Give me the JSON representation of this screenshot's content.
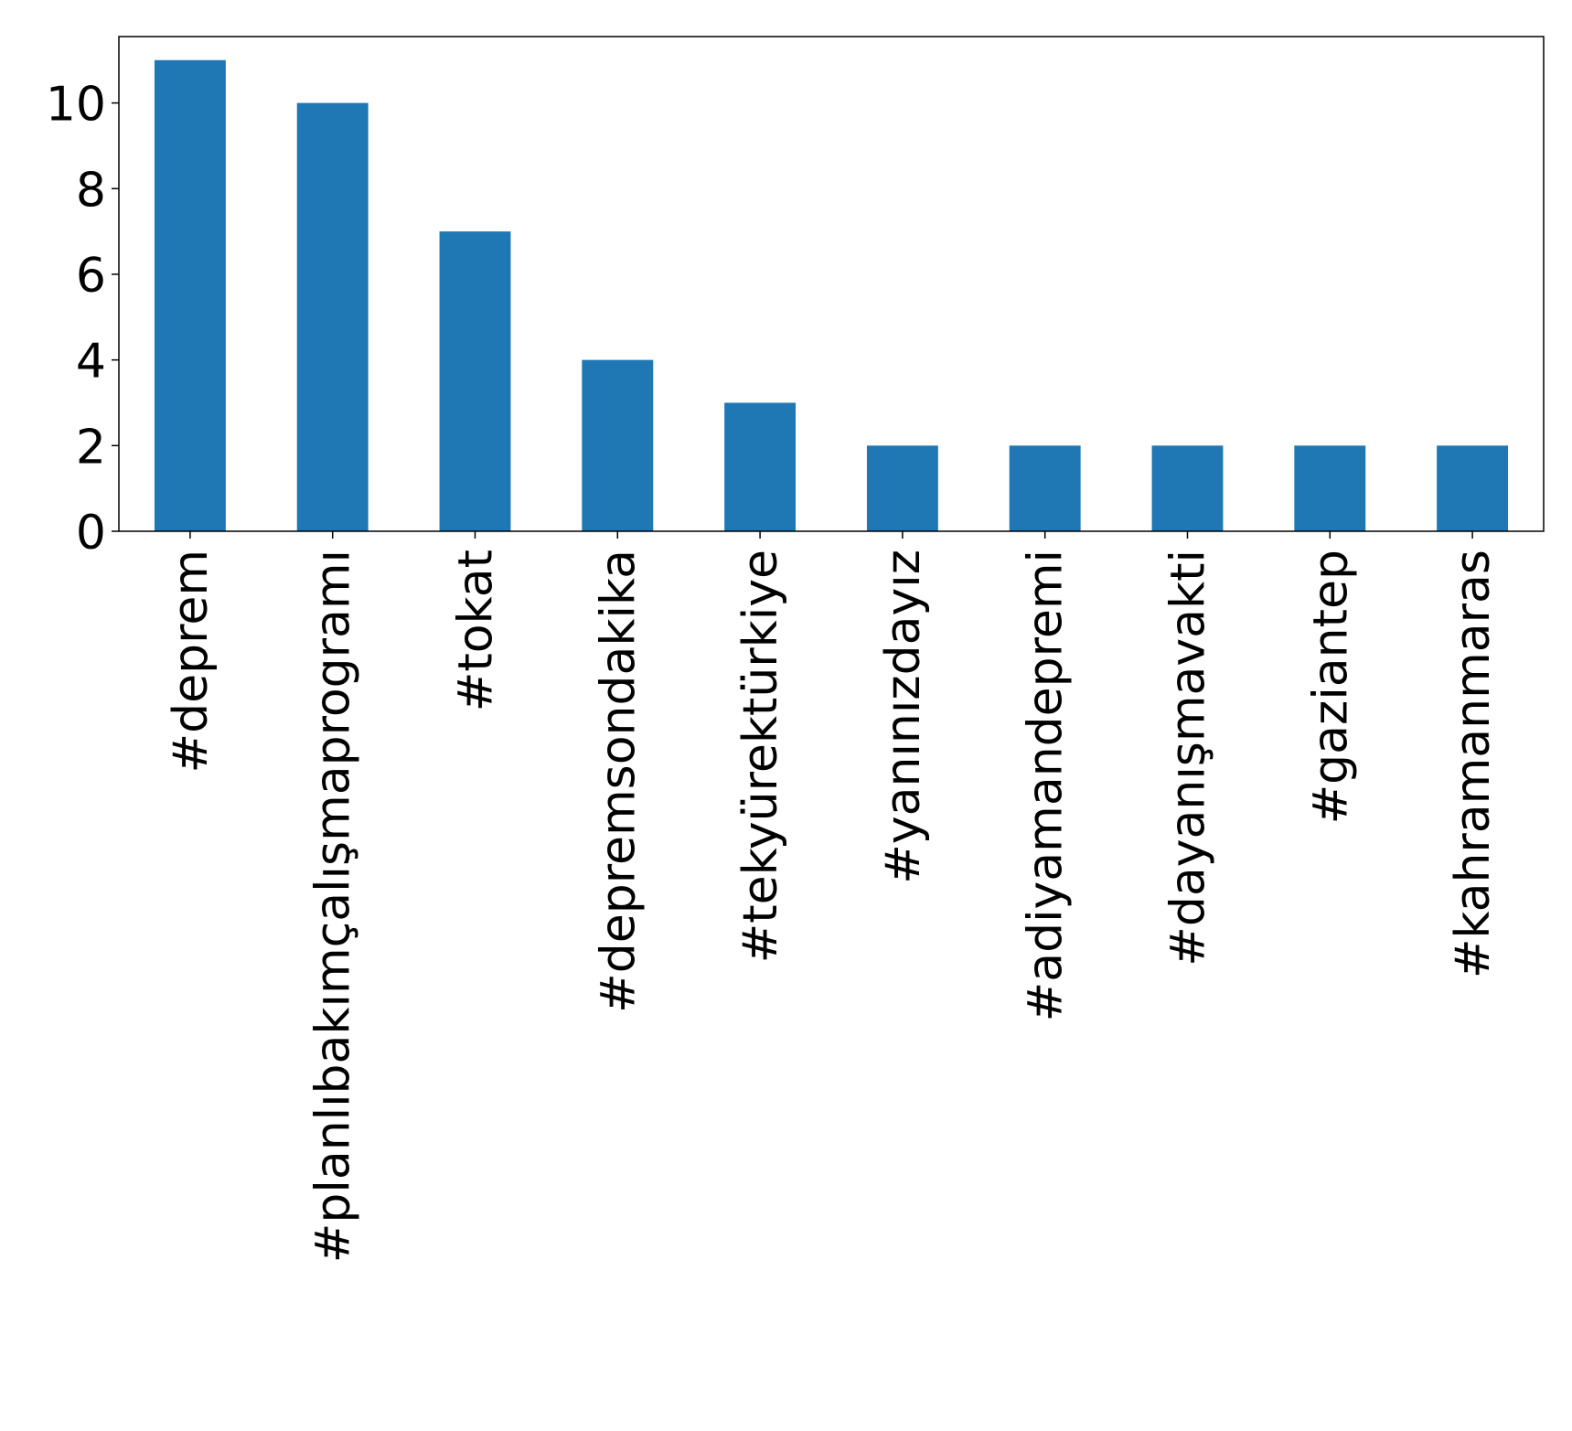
{
  "chart_data": {
    "type": "bar",
    "categories": [
      "#deprem",
      "#planlıbakımçalışmaprogramı",
      "#tokat",
      "#depremsondakika",
      "#tekyürektürkiye",
      "#yanınızdayız",
      "#adiyamandepremi",
      "#dayanışmavakti",
      "#gaziantep",
      "#kahramanmaras"
    ],
    "values": [
      11,
      10,
      7,
      4,
      3,
      2,
      2,
      2,
      2,
      2
    ],
    "title": "",
    "xlabel": "",
    "ylabel": "",
    "ylim": [
      0,
      11.55
    ],
    "yticks": [
      0,
      2,
      4,
      6,
      8,
      10
    ],
    "grid": false,
    "bar_color": "#1f77b4"
  }
}
